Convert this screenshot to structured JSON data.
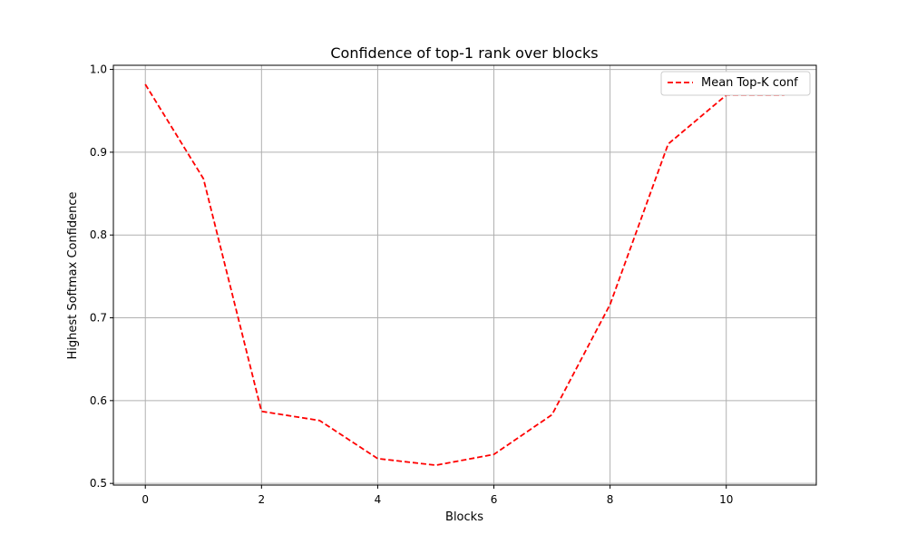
{
  "chart_data": {
    "type": "line",
    "title": "Confidence of top-1 rank over blocks",
    "xlabel": "Blocks",
    "ylabel": "Highest Softmax Confidence",
    "xlim": [
      -0.55,
      11.55
    ],
    "ylim": [
      0.498,
      1.005
    ],
    "xticks": [
      0,
      2,
      4,
      6,
      8,
      10
    ],
    "yticks": [
      0.5,
      0.6,
      0.7,
      0.8,
      0.9,
      1.0
    ],
    "xtick_labels": [
      "0",
      "2",
      "4",
      "6",
      "8",
      "10"
    ],
    "ytick_labels": [
      "0.5",
      "0.6",
      "0.7",
      "0.8",
      "0.9",
      "1.0"
    ],
    "grid": true,
    "legend_position": "top-right",
    "series": [
      {
        "name": "Mean Top-K conf",
        "color": "#ff0000",
        "line_style": "dashed",
        "x": [
          0,
          1,
          2,
          3,
          4,
          5,
          6,
          7,
          8,
          9,
          10,
          11
        ],
        "y": [
          0.982,
          0.868,
          0.587,
          0.576,
          0.53,
          0.522,
          0.535,
          0.583,
          0.716,
          0.91,
          0.969,
          0.969
        ]
      }
    ]
  }
}
